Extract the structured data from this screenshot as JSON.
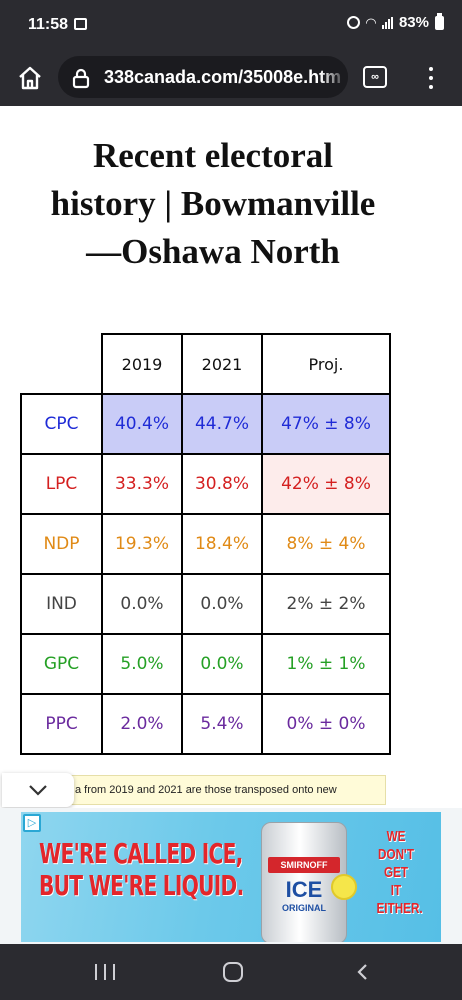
{
  "status_bar": {
    "time": "11:58",
    "battery": "83%"
  },
  "browser": {
    "url": "338canada.com/35008e.htm",
    "tabs_count": "∞"
  },
  "page": {
    "title_lines": [
      "Recent electoral",
      "history | Bowmanville",
      "—Oshawa North"
    ]
  },
  "table": {
    "headers": [
      "2019",
      "2021",
      "Proj."
    ],
    "rows": [
      {
        "party": "CPC",
        "v2019": "40.4%",
        "v2021": "44.7%",
        "proj": "47% ± 8%",
        "color": "#1f2bd6",
        "row_bg": "#c9ccf7",
        "proj_bg": "#c9ccf7"
      },
      {
        "party": "LPC",
        "v2019": "33.3%",
        "v2021": "30.8%",
        "proj": "42% ± 8%",
        "color": "#d42020",
        "row_bg": "#ffffff",
        "proj_bg": "#fdeceb"
      },
      {
        "party": "NDP",
        "v2019": "19.3%",
        "v2021": "18.4%",
        "proj": "8% ± 4%",
        "color": "#e08a16",
        "row_bg": "#ffffff",
        "proj_bg": "#ffffff"
      },
      {
        "party": "IND",
        "v2019": "0.0%",
        "v2021": "0.0%",
        "proj": "2% ± 2%",
        "color": "#444444",
        "row_bg": "#ffffff",
        "proj_bg": "#ffffff"
      },
      {
        "party": "GPC",
        "v2019": "5.0%",
        "v2021": "0.0%",
        "proj": "1% ± 1%",
        "color": "#25a025",
        "row_bg": "#ffffff",
        "proj_bg": "#ffffff"
      },
      {
        "party": "PPC",
        "v2019": "2.0%",
        "v2021": "5.4%",
        "proj": "0% ± 0%",
        "color": "#6a2a9e",
        "row_bg": "#ffffff",
        "proj_bg": "#ffffff"
      }
    ]
  },
  "footnote": {
    "text": "a from 2019 and 2021 are those transposed onto new"
  },
  "ad": {
    "choices_icon": "adchoices-icon",
    "headline_lines": [
      "WE'RE CALLED ICE,",
      "BUT WE'RE LIQUID."
    ],
    "can_brand": "SMIRNOFF",
    "can_product": "ICE",
    "can_variant": "ORIGINAL",
    "side_lines": [
      "WE",
      "DON'T",
      "GET",
      "IT",
      "EITHER."
    ]
  }
}
